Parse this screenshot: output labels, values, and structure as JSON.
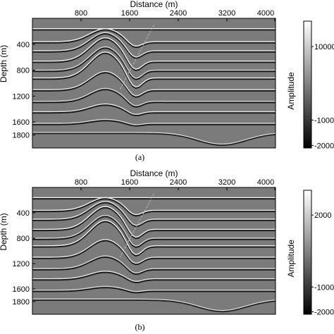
{
  "chart_data": [
    {
      "type": "heatmap",
      "panel_label": "(a)",
      "xlabel": "Distance (m)",
      "ylabel": "Depth (m)",
      "x_ticks": [
        "800",
        "1600",
        "2400",
        "3200",
        "4000"
      ],
      "y_ticks": [
        "400",
        "800",
        "1200",
        "1600",
        "1800"
      ],
      "xlim": [
        0,
        4000
      ],
      "ylim": [
        2000,
        0
      ],
      "colorbar": {
        "label": "Amplitude",
        "ticks": [
          "10000",
          "-1000",
          "-2000"
        ],
        "colormap": "gray"
      }
    },
    {
      "type": "heatmap",
      "panel_label": "(b)",
      "xlabel": "Distance (m)",
      "ylabel": "Depth (m)",
      "x_ticks": [
        "800",
        "1600",
        "2400",
        "3200",
        "4000"
      ],
      "y_ticks": [
        "400",
        "800",
        "1200",
        "1600",
        "1800"
      ],
      "xlim": [
        0,
        4000
      ],
      "ylim": [
        2000,
        0
      ],
      "colorbar": {
        "label": "Amplitude",
        "ticks": [
          "2000",
          "-1000",
          "-2000"
        ],
        "colormap": "gray"
      }
    }
  ],
  "colors": {
    "background": "#7b7b7b",
    "bright": "#f2f2f2",
    "dark": "#1a1a1a"
  }
}
